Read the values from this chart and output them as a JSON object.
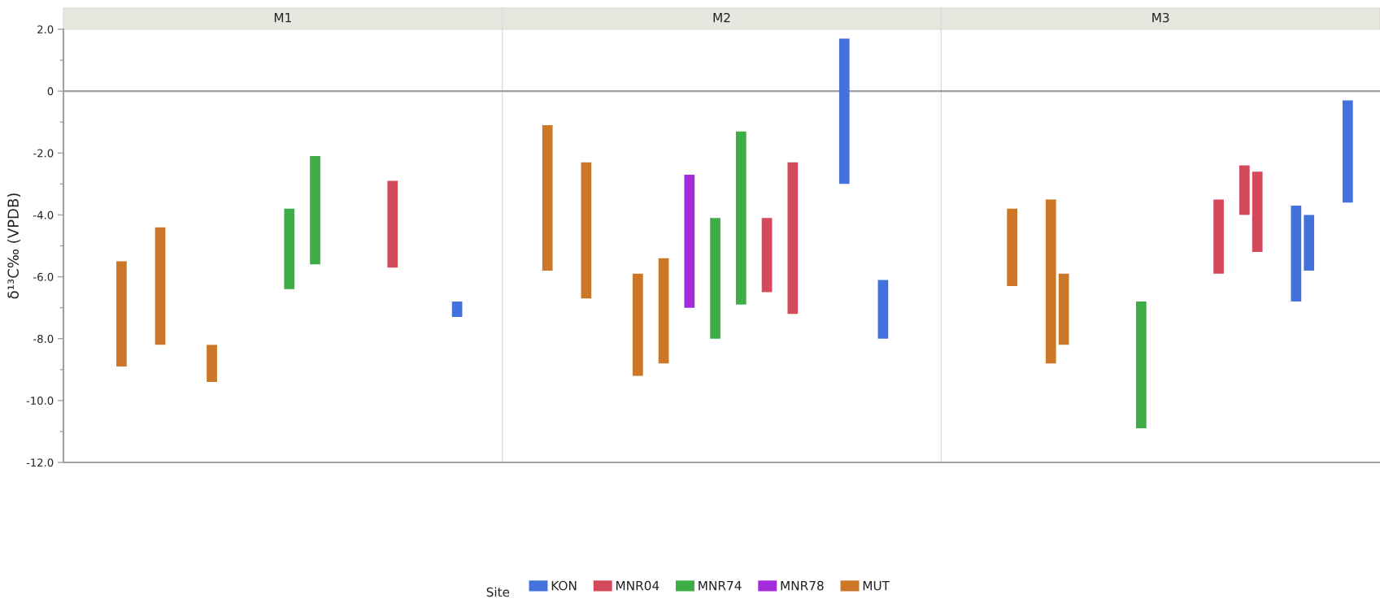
{
  "chart_data": {
    "type": "bar",
    "ylabel": "δ¹³C‰ (VPDB)",
    "annotations": [
      "M1",
      "M2",
      "M3"
    ],
    "legend": "bottom",
    "legend_title": "Site",
    "tick_labels": "y",
    "categories": [
      null,
      null,
      null,
      null,
      null,
      null,
      null,
      null,
      null,
      null,
      null,
      null,
      null,
      null,
      null,
      null,
      null,
      null,
      null,
      null,
      null,
      null,
      null,
      null,
      null,
      null,
      null,
      null,
      null,
      null,
      null,
      null,
      null,
      null,
      null,
      null,
      null,
      null,
      null,
      null,
      null,
      null,
      null,
      null,
      null,
      null,
      null,
      null,
      null,
      null,
      null,
      null,
      null,
      null,
      null,
      null,
      null,
      null,
      null,
      null,
      null,
      null,
      null,
      null,
      null,
      null,
      null,
      null,
      null,
      null,
      null,
      null,
      null,
      null,
      null,
      null,
      null,
      null,
      null,
      null,
      null,
      null,
      null,
      null,
      null,
      null,
      null,
      null,
      null,
      null,
      null,
      null,
      null,
      null,
      null,
      null,
      null,
      null,
      null,
      null,
      null,
      null
    ],
    "series": [
      {
        "name": "KON",
        "color": "#4472dc",
        "values": [
          null,
          null,
          null,
          null,
          null,
          null,
          null,
          null,
          null,
          null,
          null,
          null,
          null,
          null,
          null,
          null,
          null,
          null,
          null,
          null,
          null,
          null,
          null,
          null,
          null,
          null,
          null,
          null,
          null,
          null,
          0.5,
          null,
          null,
          null,
          null,
          null,
          null,
          null,
          null,
          null,
          null,
          null,
          null,
          null,
          null,
          null,
          null,
          null,
          null,
          null,
          null,
          null,
          null,
          null,
          null,
          null,
          null,
          null,
          null,
          null,
          4.7,
          null,
          null,
          1.9,
          null,
          null,
          null,
          null,
          null,
          null,
          null,
          null,
          null,
          null,
          null,
          null,
          null,
          null,
          null,
          null,
          null,
          null,
          null,
          null,
          null,
          null,
          null,
          null,
          null,
          null,
          null,
          null,
          null,
          null,
          null,
          3.1,
          1.8,
          null,
          null,
          3.3,
          null,
          null
        ],
        "base": [
          null,
          null,
          null,
          null,
          null,
          null,
          null,
          null,
          null,
          null,
          null,
          null,
          null,
          null,
          null,
          null,
          null,
          null,
          null,
          null,
          null,
          null,
          null,
          null,
          null,
          null,
          null,
          null,
          null,
          null,
          -7.3,
          null,
          null,
          null,
          null,
          null,
          null,
          null,
          null,
          null,
          null,
          null,
          null,
          null,
          null,
          null,
          null,
          null,
          null,
          null,
          null,
          null,
          null,
          null,
          null,
          null,
          null,
          null,
          null,
          null,
          -3.0,
          null,
          null,
          -8.0,
          null,
          null,
          null,
          null,
          null,
          null,
          null,
          null,
          null,
          null,
          null,
          null,
          null,
          null,
          null,
          null,
          null,
          null,
          null,
          null,
          null,
          null,
          null,
          null,
          null,
          null,
          null,
          null,
          null,
          null,
          null,
          -6.8,
          -5.8,
          null,
          null,
          -3.6,
          null,
          null
        ]
      },
      {
        "name": "MNR04",
        "color": "#d44a5a",
        "values": [
          null,
          null,
          null,
          null,
          null,
          null,
          null,
          null,
          null,
          null,
          null,
          null,
          null,
          null,
          null,
          null,
          null,
          null,
          null,
          null,
          null,
          null,
          null,
          null,
          null,
          2.8,
          null,
          null,
          null,
          null,
          null,
          null,
          null,
          null,
          null,
          null,
          null,
          null,
          null,
          null,
          null,
          null,
          null,
          null,
          null,
          null,
          null,
          null,
          null,
          null,
          null,
          null,
          null,
          null,
          2.4,
          null,
          4.9,
          null,
          null,
          null,
          null,
          null,
          null,
          null,
          null,
          null,
          null,
          null,
          null,
          null,
          null,
          null,
          null,
          null,
          null,
          null,
          null,
          null,
          null,
          null,
          null,
          null,
          null,
          null,
          null,
          null,
          null,
          null,
          null,
          2.4,
          null,
          1.6,
          2.6,
          null,
          null,
          null,
          null,
          null,
          null,
          null,
          null,
          null
        ],
        "base": [
          null,
          null,
          null,
          null,
          null,
          null,
          null,
          null,
          null,
          null,
          null,
          null,
          null,
          null,
          null,
          null,
          null,
          null,
          null,
          null,
          null,
          null,
          null,
          null,
          null,
          -5.7,
          null,
          null,
          null,
          null,
          null,
          null,
          null,
          null,
          null,
          null,
          null,
          null,
          null,
          null,
          null,
          null,
          null,
          null,
          null,
          null,
          null,
          null,
          null,
          null,
          null,
          null,
          null,
          null,
          -6.5,
          null,
          -7.2,
          null,
          null,
          null,
          null,
          null,
          null,
          null,
          null,
          null,
          null,
          null,
          null,
          null,
          null,
          null,
          null,
          null,
          null,
          null,
          null,
          null,
          null,
          null,
          null,
          null,
          null,
          null,
          null,
          null,
          null,
          null,
          null,
          -5.9,
          null,
          -4.0,
          -5.2,
          null,
          null,
          null,
          null,
          null,
          null,
          null,
          null,
          null
        ]
      },
      {
        "name": "MNR74",
        "color": "#3dae46",
        "values": [
          null,
          null,
          null,
          null,
          null,
          null,
          null,
          null,
          null,
          null,
          null,
          null,
          null,
          null,
          null,
          null,
          null,
          2.6,
          null,
          3.5,
          null,
          null,
          null,
          null,
          null,
          null,
          null,
          null,
          null,
          null,
          null,
          null,
          null,
          null,
          null,
          null,
          null,
          null,
          null,
          null,
          null,
          null,
          null,
          null,
          null,
          null,
          null,
          null,
          null,
          null,
          3.9,
          null,
          5.6,
          null,
          null,
          null,
          null,
          null,
          null,
          null,
          null,
          null,
          null,
          null,
          null,
          null,
          null,
          null,
          null,
          null,
          null,
          null,
          null,
          null,
          null,
          null,
          null,
          null,
          null,
          null,
          null,
          null,
          null,
          4.1,
          null,
          null,
          null,
          null,
          null,
          null,
          null,
          null,
          null,
          null,
          null,
          null,
          null,
          null,
          null,
          null,
          null,
          null
        ],
        "base": [
          null,
          null,
          null,
          null,
          null,
          null,
          null,
          null,
          null,
          null,
          null,
          null,
          null,
          null,
          null,
          null,
          null,
          -6.4,
          null,
          -5.6,
          null,
          null,
          null,
          null,
          null,
          null,
          null,
          null,
          null,
          null,
          null,
          null,
          null,
          null,
          null,
          null,
          null,
          null,
          null,
          null,
          null,
          null,
          null,
          null,
          null,
          null,
          null,
          null,
          null,
          null,
          -8.0,
          null,
          -6.9,
          null,
          null,
          null,
          null,
          null,
          null,
          null,
          null,
          null,
          null,
          null,
          null,
          null,
          null,
          null,
          null,
          null,
          null,
          null,
          null,
          null,
          null,
          null,
          null,
          null,
          null,
          null,
          null,
          null,
          null,
          -10.9,
          null,
          null,
          null,
          null,
          null,
          null,
          null,
          null,
          null,
          null,
          null,
          null,
          null,
          null,
          null,
          null,
          null,
          null
        ]
      },
      {
        "name": "MNR78",
        "color": "#a22bdb",
        "values": [
          null,
          null,
          null,
          null,
          null,
          null,
          null,
          null,
          null,
          null,
          null,
          null,
          null,
          null,
          null,
          null,
          null,
          null,
          null,
          null,
          null,
          null,
          null,
          null,
          null,
          null,
          null,
          null,
          null,
          null,
          null,
          null,
          null,
          null,
          null,
          null,
          null,
          null,
          null,
          null,
          null,
          null,
          null,
          null,
          null,
          null,
          null,
          null,
          4.3,
          null,
          null,
          null,
          null,
          null,
          null,
          null,
          null,
          null,
          null,
          null,
          null,
          null,
          null,
          null,
          null,
          null,
          null,
          null,
          null,
          null,
          null,
          null,
          null,
          null,
          null,
          null,
          null,
          null,
          null,
          null,
          null,
          null,
          null,
          null,
          null,
          null,
          null,
          null,
          null,
          null,
          null,
          null,
          null,
          null,
          null,
          null,
          null,
          null,
          null,
          null,
          null,
          null
        ],
        "base": [
          null,
          null,
          null,
          null,
          null,
          null,
          null,
          null,
          null,
          null,
          null,
          null,
          null,
          null,
          null,
          null,
          null,
          null,
          null,
          null,
          null,
          null,
          null,
          null,
          null,
          null,
          null,
          null,
          null,
          null,
          null,
          null,
          null,
          null,
          null,
          null,
          null,
          null,
          null,
          null,
          null,
          null,
          null,
          null,
          null,
          null,
          null,
          null,
          -7.0,
          null,
          null,
          null,
          null,
          null,
          null,
          null,
          null,
          null,
          null,
          null,
          null,
          null,
          null,
          null,
          null,
          null,
          null,
          null,
          null,
          null,
          null,
          null,
          null,
          null,
          null,
          null,
          null,
          null,
          null,
          null,
          null,
          null,
          null,
          null,
          null,
          null,
          null,
          null,
          null,
          null,
          null,
          null,
          null,
          null,
          null,
          null,
          null,
          null,
          null,
          null,
          null,
          null
        ]
      },
      {
        "name": "MUT",
        "color": "#cc7728",
        "values": [
          null,
          null,
          null,
          null,
          3.4,
          null,
          null,
          3.8,
          null,
          null,
          null,
          1.2,
          null,
          null,
          null,
          null,
          null,
          null,
          null,
          null,
          null,
          null,
          null,
          null,
          null,
          null,
          null,
          null,
          null,
          null,
          null,
          null,
          null,
          null,
          null,
          null,
          null,
          4.7,
          null,
          null,
          4.4,
          null,
          null,
          null,
          3.3,
          null,
          3.4,
          null,
          null,
          null,
          null,
          null,
          null,
          null,
          null,
          null,
          null,
          null,
          null,
          null,
          null,
          null,
          null,
          null,
          null,
          null,
          null,
          null,
          null,
          null,
          null,
          null,
          null,
          2.5,
          null,
          null,
          5.3,
          2.3,
          null,
          null,
          null,
          null,
          null,
          null,
          null,
          null,
          null,
          null,
          null,
          null,
          null,
          null,
          null,
          null,
          null,
          null,
          null,
          null,
          null,
          null,
          null,
          null
        ],
        "base": [
          null,
          null,
          null,
          null,
          -8.9,
          null,
          null,
          -8.2,
          null,
          null,
          null,
          -9.4,
          null,
          null,
          null,
          null,
          null,
          null,
          null,
          null,
          null,
          null,
          null,
          null,
          null,
          null,
          null,
          null,
          null,
          null,
          null,
          null,
          null,
          null,
          null,
          null,
          null,
          -5.8,
          null,
          null,
          -6.7,
          null,
          null,
          null,
          -9.2,
          null,
          -8.8,
          null,
          null,
          null,
          null,
          null,
          null,
          null,
          null,
          null,
          null,
          null,
          null,
          null,
          null,
          null,
          null,
          null,
          null,
          null,
          null,
          null,
          null,
          null,
          null,
          null,
          null,
          -6.3,
          null,
          null,
          -8.8,
          -8.2,
          null,
          null,
          null,
          null,
          null,
          null,
          null,
          null,
          null,
          null,
          null,
          null,
          null,
          null,
          null,
          null,
          null,
          null,
          null,
          null,
          null,
          null,
          null,
          null
        ]
      }
    ],
    "ylim": [
      -12,
      2
    ],
    "yticks": [
      {
        "value": -12,
        "label": "-12.0"
      },
      {
        "value": -11,
        "label": null
      },
      {
        "value": -10,
        "label": "-10.0"
      },
      {
        "value": -9,
        "label": null
      },
      {
        "value": -8,
        "label": "-8.0"
      },
      {
        "value": -7,
        "label": null
      },
      {
        "value": -6,
        "label": "-6.0"
      },
      {
        "value": -5,
        "label": null
      },
      {
        "value": -4,
        "label": "-4.0"
      },
      {
        "value": -3,
        "label": null
      },
      {
        "value": -2,
        "label": "-2.0"
      },
      {
        "value": -1,
        "label": null
      },
      0,
      {
        "value": 1,
        "label": null
      },
      {
        "value": 2,
        "label": "2.0"
      }
    ],
    "ref_lines": [
      {
        "axis": "y",
        "value": 0,
        "color": "#a0a0a0"
      }
    ]
  }
}
